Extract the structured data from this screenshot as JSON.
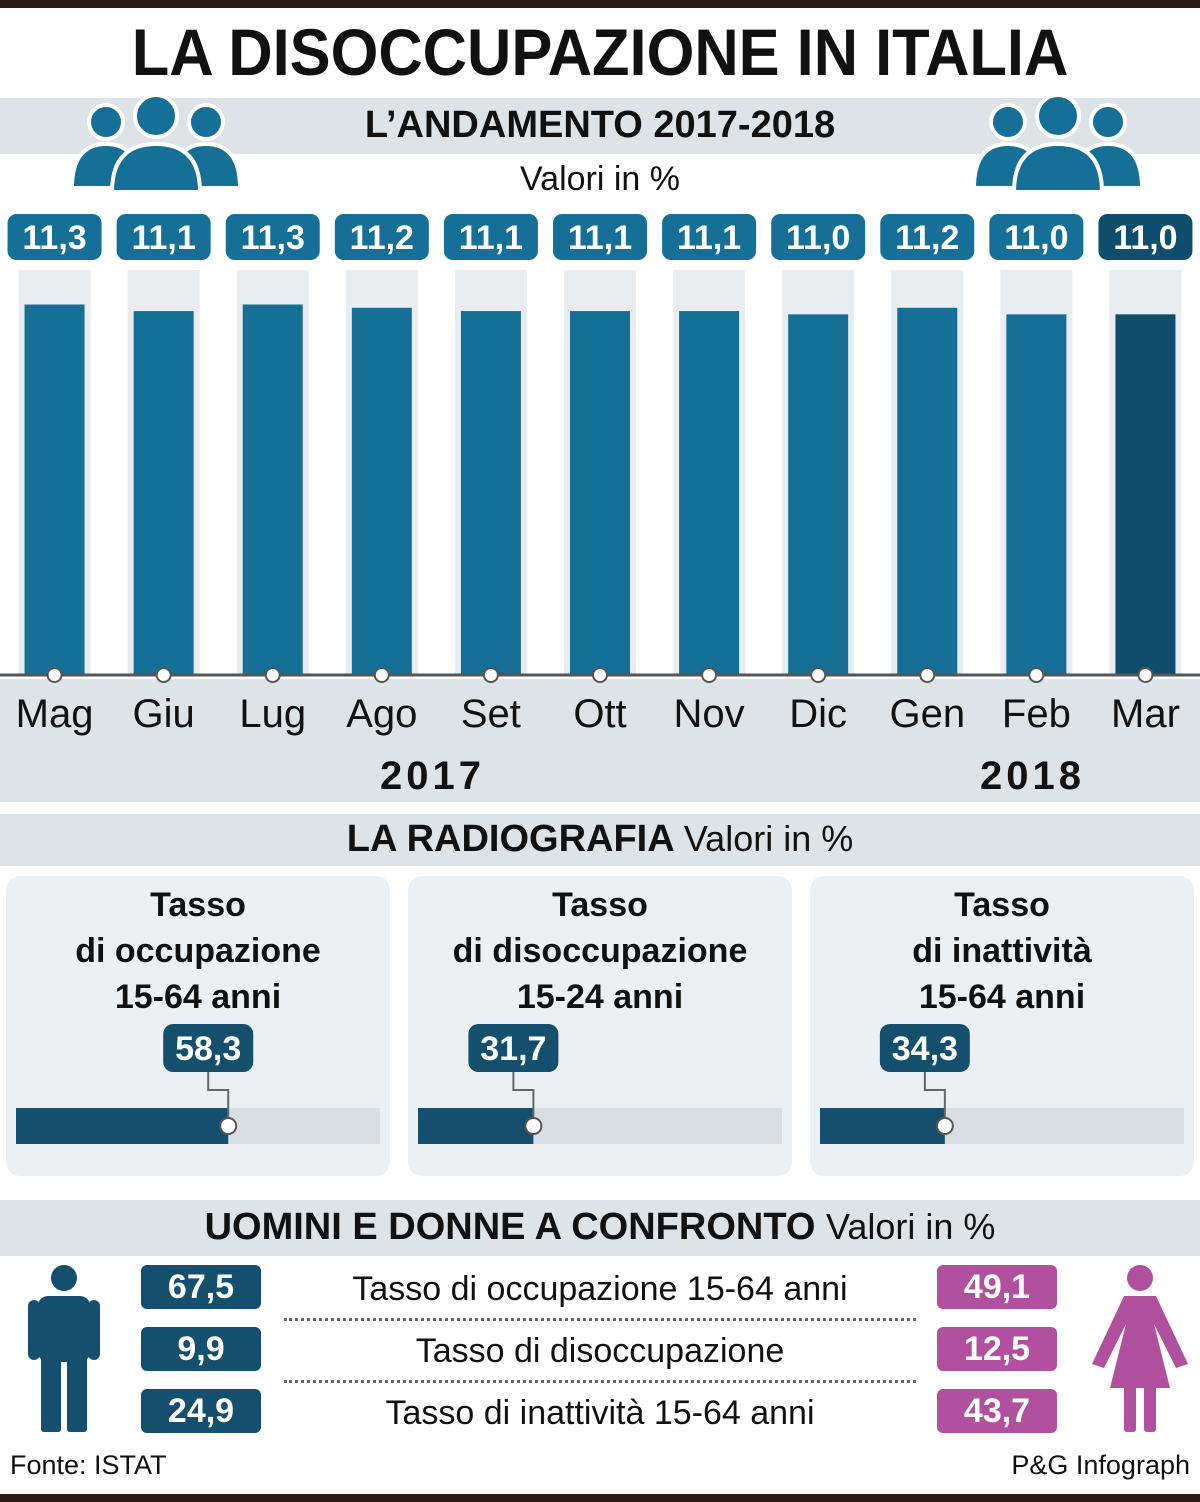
{
  "title": "LA DISOCCUPAZIONE IN ITALIA",
  "trend": {
    "heading": "L’ANDAMENTO 2017-2018",
    "unit": "Valori in %",
    "year_left": "2017",
    "year_right": "2018",
    "icon": "people-group-icon"
  },
  "radiography": {
    "heading": "LA RADIOGRAFIA",
    "unit": "Valori in %",
    "cards": [
      {
        "title_lines": [
          "Tasso",
          "di occupazione",
          "15-64 anni"
        ],
        "value": 58.3,
        "label": "58,3"
      },
      {
        "title_lines": [
          "Tasso",
          "di disoccupazione",
          "15-24 anni"
        ],
        "value": 31.7,
        "label": "31,7"
      },
      {
        "title_lines": [
          "Tasso",
          "di inattività",
          "15-64 anni"
        ],
        "value": 34.3,
        "label": "34,3"
      }
    ]
  },
  "gender": {
    "heading": "UOMINI E DONNE A CONFRONTO",
    "unit": "Valori in %",
    "men_icon": "man-icon",
    "women_icon": "woman-icon",
    "rows": [
      {
        "label": "Tasso di occupazione 15-64 anni",
        "men": "67,5",
        "women": "49,1"
      },
      {
        "label": "Tasso di disoccupazione",
        "men": "9,9",
        "women": "12,5"
      },
      {
        "label": "Tasso di inattività 15-64 anni",
        "men": "24,9",
        "women": "43,7"
      }
    ]
  },
  "footer": {
    "source": "Fonte: ISTAT",
    "credit": "P&G Infograph"
  },
  "colors": {
    "bar": "#156f96",
    "bar_last": "#0e4e6c",
    "track": "#e9edf0",
    "dark": "#14506d",
    "pink": "#b0509f"
  },
  "chart_data": {
    "type": "bar",
    "title": "L’ANDAMENTO 2017-2018",
    "ylabel": "Valori in %",
    "categories": [
      "Mag",
      "Giu",
      "Lug",
      "Ago",
      "Set",
      "Ott",
      "Nov",
      "Dic",
      "Gen",
      "Feb",
      "Mar"
    ],
    "values": [
      11.3,
      11.1,
      11.3,
      11.2,
      11.1,
      11.1,
      11.1,
      11.0,
      11.2,
      11.0,
      11.0
    ],
    "value_labels": [
      "11,3",
      "11,1",
      "11,3",
      "11,2",
      "11,1",
      "11,1",
      "11,1",
      "11,0",
      "11,2",
      "11,0",
      "11,0"
    ],
    "ylim": [
      0,
      12.2
    ],
    "grid": false,
    "legend": "none",
    "highlight_last": true
  }
}
